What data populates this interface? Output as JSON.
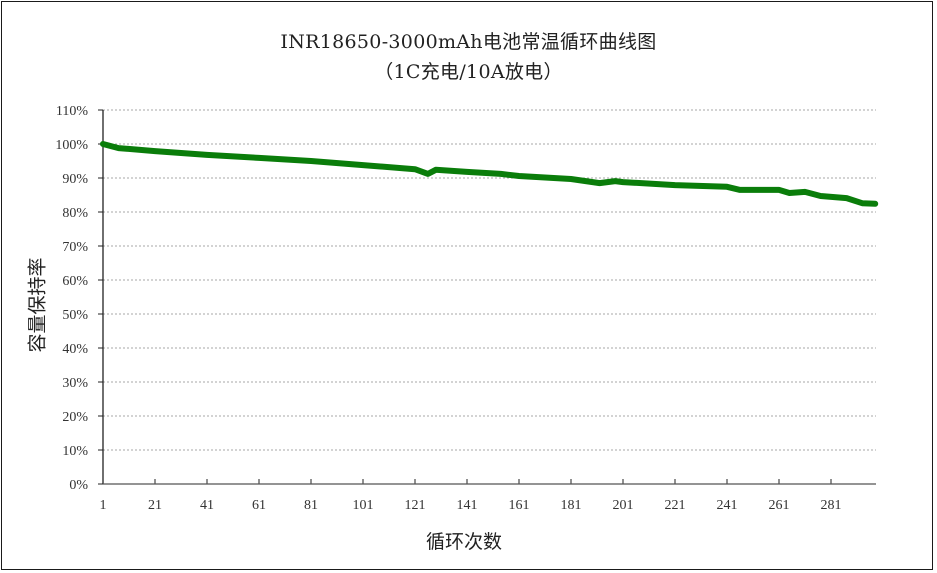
{
  "chart_data": {
    "type": "line",
    "title": "INR18650-3000mAh电池常温循环曲线图",
    "subtitle": "（1C充电/10A放电）",
    "xlabel": "循环次数",
    "ylabel": "容量保持率",
    "x_ticks": [
      "1",
      "21",
      "41",
      "61",
      "81",
      "101",
      "121",
      "141",
      "161",
      "181",
      "201",
      "221",
      "241",
      "261",
      "281"
    ],
    "y_ticks": [
      "0%",
      "10%",
      "20%",
      "30%",
      "40%",
      "50%",
      "60%",
      "70%",
      "80%",
      "90%",
      "100%",
      "110%"
    ],
    "xlim": [
      1,
      300
    ],
    "ylim": [
      0,
      110
    ],
    "grid": "horizontal dashed",
    "legend": "none",
    "series": [
      {
        "name": "容量保持率",
        "color": "#0a7d0a",
        "x": [
          1,
          7,
          21,
          41,
          61,
          81,
          101,
          121,
          126,
          129,
          141,
          154,
          161,
          181,
          192,
          198,
          201,
          221,
          241,
          246,
          261,
          265,
          271,
          277,
          287,
          293,
          298
        ],
        "values": [
          100.0,
          98.8,
          97.9,
          96.8,
          95.9,
          95.0,
          93.8,
          92.6,
          91.2,
          92.4,
          91.8,
          91.2,
          90.6,
          89.7,
          88.5,
          89.1,
          88.8,
          87.9,
          87.4,
          86.5,
          86.5,
          85.6,
          85.9,
          84.7,
          84.1,
          82.6,
          82.4
        ]
      }
    ]
  }
}
